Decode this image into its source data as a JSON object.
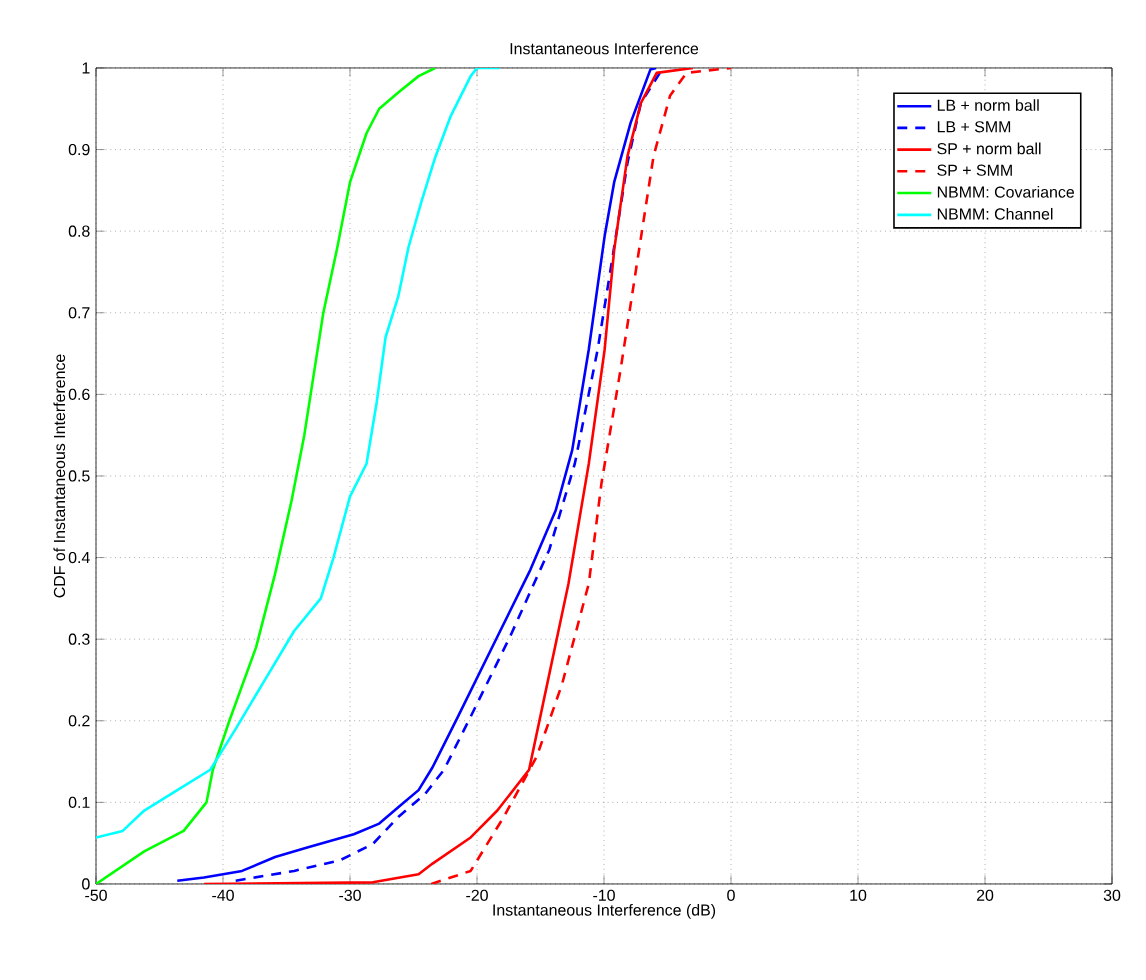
{
  "chart_data": {
    "type": "line",
    "title": "Instantaneous Interference",
    "xlabel": "Instantaneous Interference (dB)",
    "ylabel": "CDF of Instantaneous Interference",
    "xlim": [
      -50,
      30
    ],
    "ylim": [
      0,
      1
    ],
    "xticks": [
      -50,
      -40,
      -30,
      -20,
      -10,
      0,
      10,
      20,
      30
    ],
    "yticks": [
      0,
      0.1,
      0.2,
      0.3,
      0.4,
      0.5,
      0.6,
      0.7,
      0.8,
      0.9,
      1
    ],
    "grid": true,
    "legend": "top right",
    "marker": "none",
    "series": [
      {
        "name": "LB + norm ball",
        "color": "#0000ff",
        "line_style": "solid",
        "x": [
          -43.6,
          -41.5,
          -38.5,
          -35.9,
          -33.3,
          -29.7,
          -27.7,
          -25.9,
          -24.6,
          -23.5,
          -21.5,
          -18.4,
          -15.8,
          -13.8,
          -12.5,
          -11.2,
          -9.95,
          -9.2,
          -7.9,
          -6.35,
          -5.9
        ],
        "values": [
          0.004,
          0.008,
          0.016,
          0.033,
          0.045,
          0.061,
          0.074,
          0.098,
          0.115,
          0.143,
          0.205,
          0.303,
          0.385,
          0.458,
          0.532,
          0.655,
          0.794,
          0.86,
          0.933,
          0.998,
          1.0
        ]
      },
      {
        "name": "LB + SMM",
        "color": "#0000ff",
        "line_style": "dashed",
        "x": [
          -39,
          -34.4,
          -30.8,
          -28.2,
          -26.2,
          -24.1,
          -22.6,
          -20.5,
          -17.4,
          -14.3,
          -12.3,
          -10.5,
          -9.4,
          -8.15,
          -7.1,
          -5.6,
          -5.2
        ],
        "values": [
          0.004,
          0.016,
          0.029,
          0.049,
          0.082,
          0.11,
          0.14,
          0.205,
          0.303,
          0.41,
          0.515,
          0.655,
          0.761,
          0.884,
          0.957,
          0.994,
          1.0
        ]
      },
      {
        "name": "SP + norm ball",
        "color": "#ff0000",
        "line_style": "solid",
        "x": [
          -41.5,
          -28.2,
          -24.6,
          -23.5,
          -20.5,
          -18.4,
          -15.9,
          -14.8,
          -12.8,
          -11.2,
          -9.95,
          -9.2,
          -8.15,
          -7.1,
          -5.85,
          -3.0
        ],
        "values": [
          0.0,
          0.002,
          0.012,
          0.025,
          0.057,
          0.09,
          0.14,
          0.221,
          0.368,
          0.515,
          0.655,
          0.777,
          0.892,
          0.957,
          0.994,
          1.0
        ]
      },
      {
        "name": "SP + SMM",
        "color": "#ff0000",
        "line_style": "dashed",
        "x": [
          -23.6,
          -20.5,
          -17.9,
          -15.3,
          -13.3,
          -11.2,
          -10.2,
          -8.7,
          -7.4,
          -6.1,
          -4.8,
          -3.5,
          0
        ],
        "values": [
          0.0,
          0.016,
          0.082,
          0.156,
          0.245,
          0.368,
          0.491,
          0.63,
          0.761,
          0.892,
          0.966,
          0.994,
          1.0
        ]
      },
      {
        "name": "NBMM: Covariance",
        "color": "#00ff00",
        "line_style": "solid",
        "x": [
          -50,
          -46.2,
          -43.1,
          -41.3,
          -40.8,
          -39.5,
          -37.4,
          -35.9,
          -34.6,
          -33.6,
          -32.8,
          -32.1,
          -31.0,
          -30,
          -28.7,
          -27.7,
          -26.2,
          -24.6,
          -23.3
        ],
        "values": [
          0.0,
          0.04,
          0.065,
          0.1,
          0.14,
          0.2,
          0.29,
          0.38,
          0.47,
          0.55,
          0.63,
          0.7,
          0.78,
          0.86,
          0.92,
          0.95,
          0.97,
          0.99,
          1.0
        ]
      },
      {
        "name": "NBMM: Channel",
        "color": "#00ffff",
        "line_style": "solid",
        "x": [
          -50,
          -47.9,
          -46.2,
          -43.6,
          -41,
          -39,
          -36.9,
          -34.4,
          -32.3,
          -31.3,
          -30,
          -28.7,
          -27.9,
          -27.2,
          -26.2,
          -25.4,
          -24.4,
          -23.3,
          -22.1,
          -20.5,
          -20,
          -18.2
        ],
        "values": [
          0.057,
          0.065,
          0.09,
          0.115,
          0.14,
          0.19,
          0.245,
          0.31,
          0.35,
          0.4,
          0.475,
          0.515,
          0.59,
          0.67,
          0.72,
          0.78,
          0.835,
          0.89,
          0.94,
          0.99,
          1.0,
          1.0
        ]
      }
    ]
  }
}
